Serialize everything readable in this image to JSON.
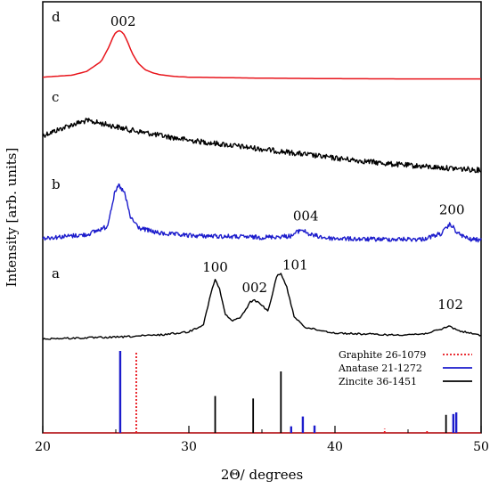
{
  "chart_data": {
    "type": "line",
    "xlabel": "2Θ/ degrees",
    "ylabel": "Intensity [arb. units]",
    "xlim": [
      20,
      50
    ],
    "xticks": [
      20,
      30,
      40,
      50
    ],
    "grid": false,
    "legend_position": "bottom-right",
    "series": [
      {
        "label": "d",
        "color": "#e8141b",
        "style": "smooth",
        "x": [
          20,
          22,
          23,
          24,
          24.5,
          24.9,
          25.2,
          25.5,
          25.8,
          26.1,
          26.5,
          27,
          27.5,
          28,
          29,
          30,
          35,
          40,
          45,
          50
        ],
        "y": [
          0.12,
          0.2,
          0.35,
          0.75,
          1.3,
          1.85,
          2.0,
          1.9,
          1.55,
          1.1,
          0.7,
          0.42,
          0.3,
          0.22,
          0.15,
          0.12,
          0.08,
          0.06,
          0.05,
          0.05
        ],
        "peaks": [
          {
            "x": 25.5,
            "label": "002"
          }
        ]
      },
      {
        "label": "c",
        "color": "#000000",
        "style": "noisy",
        "x": [
          20,
          22,
          23,
          24,
          26,
          28,
          30,
          33,
          36,
          40,
          44,
          47,
          50
        ],
        "y": [
          1.6,
          2.0,
          2.15,
          2.05,
          1.8,
          1.6,
          1.42,
          1.22,
          1.02,
          0.75,
          0.52,
          0.4,
          0.3
        ],
        "peaks": []
      },
      {
        "label": "b",
        "color": "#1c1ccc",
        "style": "noisy",
        "x": [
          20,
          23,
          24.4,
          24.9,
          25.2,
          25.6,
          26.0,
          26.6,
          28,
          30,
          35,
          37,
          37.7,
          38.3,
          39.5,
          42,
          46,
          47.3,
          47.9,
          48.4,
          49.2,
          50
        ],
        "y": [
          0.22,
          0.35,
          0.65,
          1.85,
          2.2,
          1.9,
          1.0,
          0.6,
          0.4,
          0.32,
          0.25,
          0.3,
          0.55,
          0.35,
          0.22,
          0.18,
          0.18,
          0.4,
          0.75,
          0.4,
          0.18,
          0.15
        ],
        "peaks": [
          {
            "x": 38.0,
            "label": "004"
          },
          {
            "x": 48.0,
            "label": "200"
          }
        ]
      },
      {
        "label": "a",
        "color": "#000000",
        "style": "jagged",
        "x": [
          20,
          25,
          28,
          30,
          31,
          31.5,
          31.8,
          32.1,
          32.5,
          33.0,
          33.6,
          34.2,
          34.5,
          34.9,
          35.4,
          35.7,
          36.0,
          36.3,
          36.7,
          37.2,
          38,
          40,
          44,
          46,
          47.2,
          47.8,
          48.5,
          50
        ],
        "y": [
          0.1,
          0.15,
          0.22,
          0.32,
          0.55,
          1.5,
          1.95,
          1.65,
          0.85,
          0.65,
          0.8,
          1.25,
          1.3,
          1.2,
          0.95,
          1.45,
          2.05,
          2.15,
          1.7,
          0.8,
          0.45,
          0.28,
          0.22,
          0.25,
          0.38,
          0.5,
          0.35,
          0.2
        ],
        "peaks": [
          {
            "x": 31.8,
            "label": "100"
          },
          {
            "x": 34.5,
            "label": "002"
          },
          {
            "x": 36.3,
            "label": "101"
          },
          {
            "x": 47.9,
            "label": "102"
          }
        ]
      }
    ],
    "references": [
      {
        "name": "Graphite 26-1079",
        "color": "#e8141b",
        "dashed": true,
        "x": [
          26.4,
          43.4,
          46.3
        ],
        "intensity": [
          100,
          5,
          4
        ]
      },
      {
        "name": "Anatase 21-1272",
        "color": "#1c1ccc",
        "dashed": false,
        "x": [
          25.3,
          37.0,
          37.8,
          38.6,
          48.1,
          48.3
        ],
        "intensity": [
          100,
          8,
          20,
          9,
          23,
          25
        ]
      },
      {
        "name": "Zincite 36-1451",
        "color": "#000000",
        "dashed": false,
        "x": [
          31.8,
          34.4,
          36.3,
          47.6
        ],
        "intensity": [
          45,
          42,
          75,
          22
        ]
      }
    ]
  }
}
